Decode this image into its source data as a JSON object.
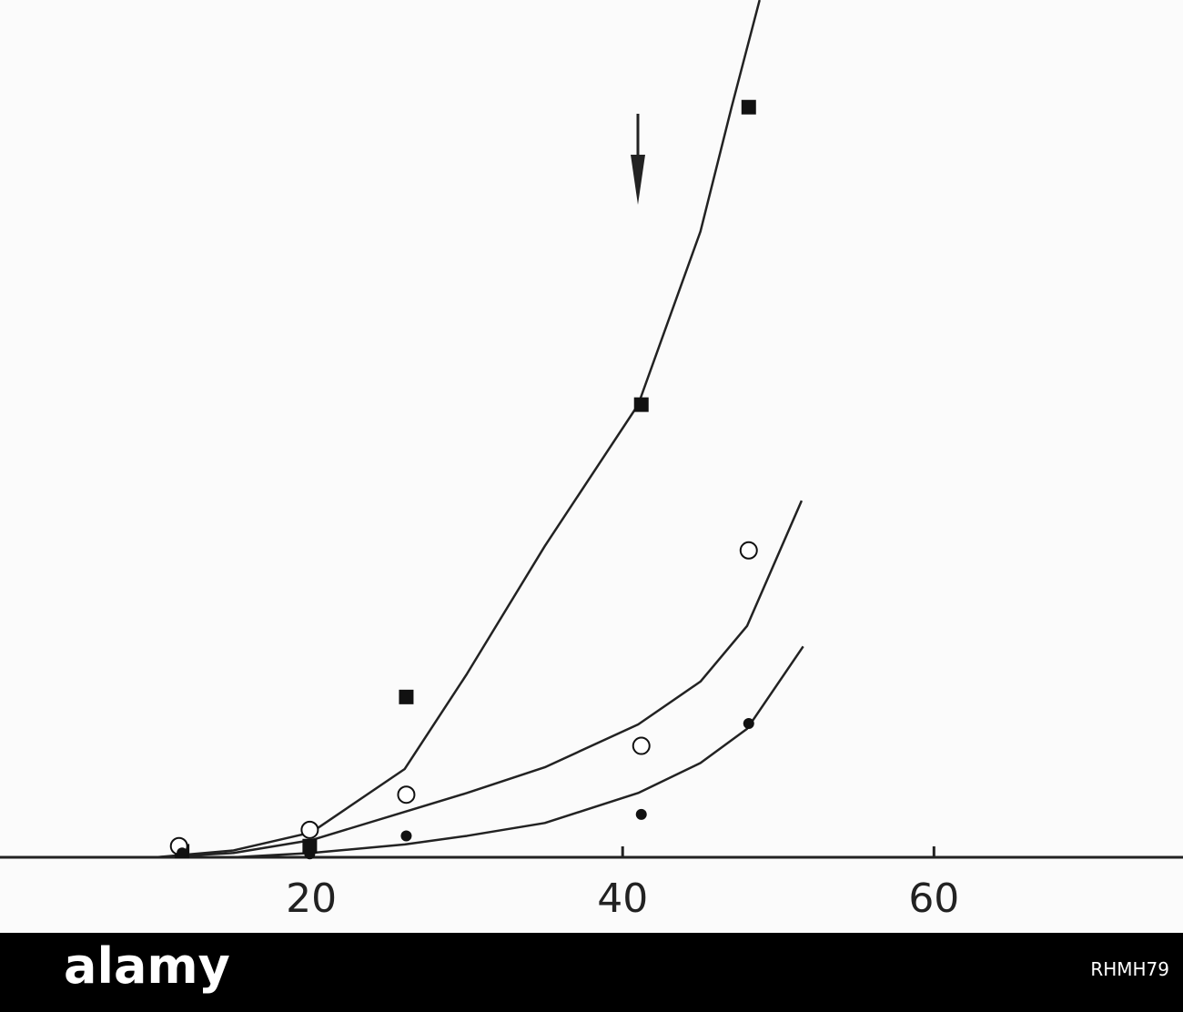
{
  "chart_data": {
    "type": "scatter",
    "xlim": [
      0,
      76
    ],
    "xticks": [
      20,
      40,
      60
    ],
    "ylim": [
      0,
      100
    ],
    "series": [
      {
        "marker": "square",
        "color": "#111111",
        "x": [
          11.7,
          19.9,
          26.1,
          41.2,
          48.1
        ],
        "values": [
          0.7,
          1.3,
          18.7,
          52.8,
          87.5
        ]
      },
      {
        "marker": "open-circle",
        "color": "#111111",
        "x": [
          11.5,
          19.9,
          26.1,
          41.2,
          48.1
        ],
        "values": [
          1.3,
          3.2,
          7.3,
          13,
          35.8
        ]
      },
      {
        "marker": "dot",
        "color": "#111111",
        "x": [
          11.7,
          19.9,
          26.1,
          41.2,
          48.1
        ],
        "values": [
          0.5,
          0.4,
          2.5,
          5,
          15.6
        ]
      }
    ],
    "fits": [
      {
        "color": "#222222",
        "x": [
          10,
          15,
          20,
          26,
          30,
          35,
          41,
          45,
          47,
          48.8
        ],
        "values": [
          0,
          0.8,
          2.9,
          10.3,
          21.4,
          36.3,
          52.8,
          73,
          87.5,
          100
        ]
      },
      {
        "color": "#222222",
        "x": [
          10,
          15,
          20,
          26,
          30,
          35,
          41,
          45,
          48,
          51.5
        ],
        "values": [
          0,
          0.5,
          2,
          5.3,
          7.5,
          10.5,
          15.5,
          20.5,
          27,
          41.6
        ]
      },
      {
        "color": "#222222",
        "x": [
          15,
          20,
          26,
          30,
          35,
          41,
          45,
          48,
          51.6
        ],
        "values": [
          0,
          0.5,
          1.5,
          2.5,
          4,
          7.5,
          11,
          15,
          24.6
        ]
      }
    ]
  },
  "watermark": {
    "brand": "alamy",
    "image_id": "RHMH79"
  }
}
